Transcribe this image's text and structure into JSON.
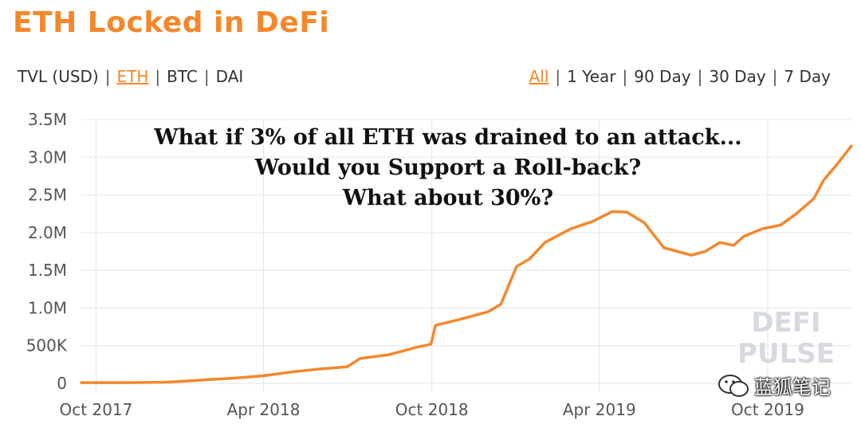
{
  "title": "ETH Locked in DeFi",
  "unit_options": [
    {
      "label": "TVL (USD)",
      "active": false
    },
    {
      "label": "ETH",
      "active": true
    },
    {
      "label": "BTC",
      "active": false
    },
    {
      "label": "DAI",
      "active": false
    }
  ],
  "range_options": [
    {
      "label": "All",
      "active": true
    },
    {
      "label": "1 Year",
      "active": false
    },
    {
      "label": "90 Day",
      "active": false
    },
    {
      "label": "30 Day",
      "active": false
    },
    {
      "label": "7 Day",
      "active": false
    }
  ],
  "separator": "|",
  "overlay_text": [
    "What if 3% of all ETH was drained to an attack...",
    "Would you Support a Roll-back?",
    "What about 30%?"
  ],
  "watermark": [
    "DEFI",
    "PULSE"
  ],
  "wechat_label": "蓝狐笔记",
  "colors": {
    "accent": "#f5872b",
    "line": "#f5872b",
    "grid": "#e5e5e5"
  },
  "chart_data": {
    "type": "line",
    "title": "ETH Locked in DeFi",
    "xlabel": "",
    "ylabel": "",
    "ylim": [
      0,
      3500000
    ],
    "yticks": [
      0,
      500000,
      1000000,
      1500000,
      2000000,
      2500000,
      3000000,
      3500000
    ],
    "ytick_labels": [
      "0",
      "500K",
      "1.0M",
      "1.5M",
      "2.0M",
      "2.5M",
      "3.0M",
      "3.5M"
    ],
    "xlim": [
      "2017-09-15",
      "2019-12-31"
    ],
    "xticks": [
      "2017-10-01",
      "2018-04-01",
      "2018-10-01",
      "2019-04-01",
      "2019-10-01"
    ],
    "xtick_labels": [
      "Oct 2017",
      "Apr 2018",
      "Oct 2018",
      "Apr 2019",
      "Oct 2019"
    ],
    "grid": true,
    "legend": "none",
    "series": [
      {
        "x": [
          "2017-09-15",
          "2017-11-01",
          "2017-12-15",
          "2018-01-05",
          "2018-02-01",
          "2018-03-01",
          "2018-04-01",
          "2018-05-01",
          "2018-06-01",
          "2018-07-01",
          "2018-07-15",
          "2018-08-15",
          "2018-09-15",
          "2018-09-30",
          "2018-10-05",
          "2018-11-01",
          "2018-12-01",
          "2018-12-15",
          "2019-01-01",
          "2019-01-15",
          "2019-02-01",
          "2019-03-01",
          "2019-03-25",
          "2019-04-15",
          "2019-05-01",
          "2019-05-20",
          "2019-06-10",
          "2019-06-25",
          "2019-07-10",
          "2019-07-25",
          "2019-08-10",
          "2019-08-25",
          "2019-09-05",
          "2019-09-25",
          "2019-10-15",
          "2019-11-01",
          "2019-11-20",
          "2019-12-01",
          "2019-12-15",
          "2019-12-31"
        ],
        "values": [
          10000,
          10000,
          15000,
          30000,
          50000,
          70000,
          100000,
          150000,
          190000,
          220000,
          330000,
          380000,
          480000,
          520000,
          770000,
          850000,
          950000,
          1050000,
          1550000,
          1650000,
          1870000,
          2050000,
          2150000,
          2280000,
          2270000,
          2130000,
          1800000,
          1750000,
          1700000,
          1750000,
          1870000,
          1830000,
          1950000,
          2050000,
          2100000,
          2250000,
          2450000,
          2700000,
          2900000,
          3150000
        ]
      }
    ]
  }
}
